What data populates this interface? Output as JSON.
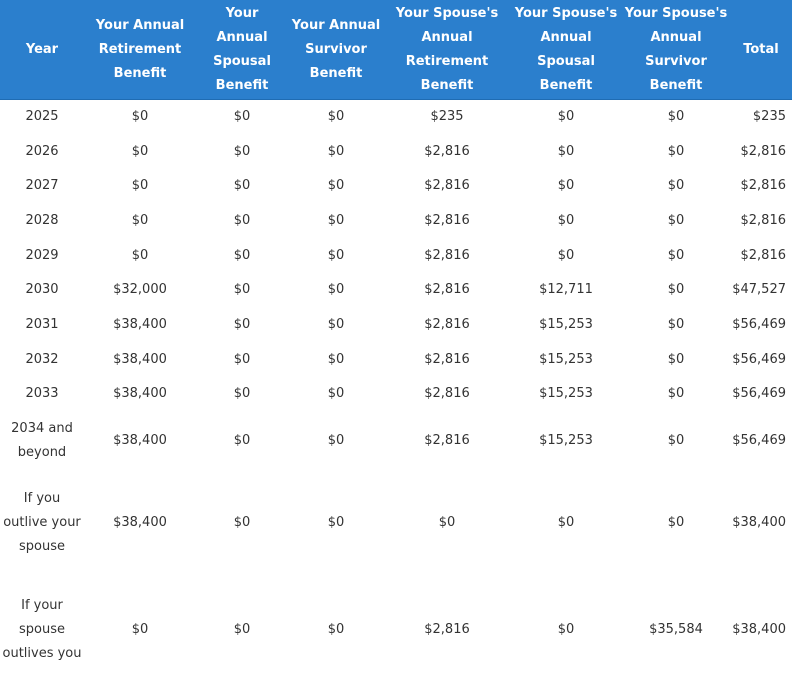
{
  "header": {
    "year": "Year",
    "your_retirement": "Your Annual Retirement Benefit",
    "your_spousal": "Your Annual Spousal Benefit",
    "your_survivor": "Your Annual Survivor Benefit",
    "spouse_retirement": "Your Spouse's Annual Retirement Benefit",
    "spouse_spousal": "Your Spouse's Annual Spousal Benefit",
    "spouse_survivor": "Your Spouse's Annual Survivor Benefit",
    "total": "Total"
  },
  "rows": [
    {
      "year": "2025",
      "your_retirement": "$0",
      "your_spousal": "$0",
      "your_survivor": "$0",
      "spouse_retirement": "$235",
      "spouse_spousal": "$0",
      "spouse_survivor": "$0",
      "total": "$235"
    },
    {
      "year": "2026",
      "your_retirement": "$0",
      "your_spousal": "$0",
      "your_survivor": "$0",
      "spouse_retirement": "$2,816",
      "spouse_spousal": "$0",
      "spouse_survivor": "$0",
      "total": "$2,816"
    },
    {
      "year": "2027",
      "your_retirement": "$0",
      "your_spousal": "$0",
      "your_survivor": "$0",
      "spouse_retirement": "$2,816",
      "spouse_spousal": "$0",
      "spouse_survivor": "$0",
      "total": "$2,816"
    },
    {
      "year": "2028",
      "your_retirement": "$0",
      "your_spousal": "$0",
      "your_survivor": "$0",
      "spouse_retirement": "$2,816",
      "spouse_spousal": "$0",
      "spouse_survivor": "$0",
      "total": "$2,816"
    },
    {
      "year": "2029",
      "your_retirement": "$0",
      "your_spousal": "$0",
      "your_survivor": "$0",
      "spouse_retirement": "$2,816",
      "spouse_spousal": "$0",
      "spouse_survivor": "$0",
      "total": "$2,816"
    },
    {
      "year": "2030",
      "your_retirement": "$32,000",
      "your_spousal": "$0",
      "your_survivor": "$0",
      "spouse_retirement": "$2,816",
      "spouse_spousal": "$12,711",
      "spouse_survivor": "$0",
      "total": "$47,527"
    },
    {
      "year": "2031",
      "your_retirement": "$38,400",
      "your_spousal": "$0",
      "your_survivor": "$0",
      "spouse_retirement": "$2,816",
      "spouse_spousal": "$15,253",
      "spouse_survivor": "$0",
      "total": "$56,469"
    },
    {
      "year": "2032",
      "your_retirement": "$38,400",
      "your_spousal": "$0",
      "your_survivor": "$0",
      "spouse_retirement": "$2,816",
      "spouse_spousal": "$15,253",
      "spouse_survivor": "$0",
      "total": "$56,469"
    },
    {
      "year": "2033",
      "your_retirement": "$38,400",
      "your_spousal": "$0",
      "your_survivor": "$0",
      "spouse_retirement": "$2,816",
      "spouse_spousal": "$15,253",
      "spouse_survivor": "$0",
      "total": "$56,469"
    },
    {
      "year": "2034 and beyond",
      "your_retirement": "$38,400",
      "your_spousal": "$0",
      "your_survivor": "$0",
      "spouse_retirement": "$2,816",
      "spouse_spousal": "$15,253",
      "spouse_survivor": "$0",
      "total": "$56,469"
    },
    {
      "year": "If you outlive your spouse",
      "your_retirement": "$38,400",
      "your_spousal": "$0",
      "your_survivor": "$0",
      "spouse_retirement": "$0",
      "spouse_spousal": "$0",
      "spouse_survivor": "$0",
      "total": "$38,400"
    },
    {
      "year": "If your spouse outlives you",
      "your_retirement": "$0",
      "your_spousal": "$0",
      "your_survivor": "$0",
      "spouse_retirement": "$2,816",
      "spouse_spousal": "$0",
      "spouse_survivor": "$35,584",
      "total": "$38,400"
    }
  ]
}
